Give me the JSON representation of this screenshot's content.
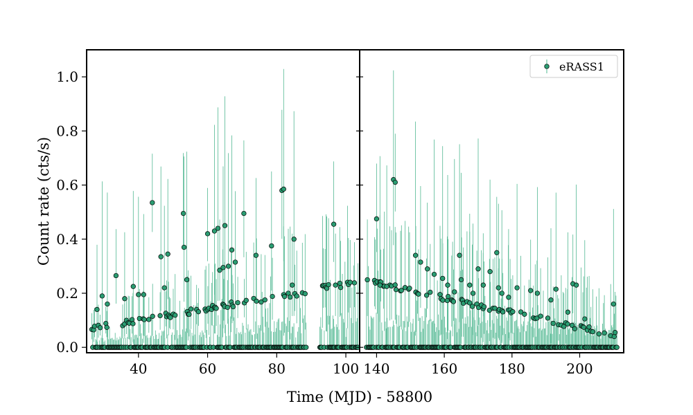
{
  "chart_data": {
    "type": "scatter",
    "title": "",
    "xlabel": "Time (MJD) - 58800",
    "ylabel": "Count rate (cts/s)",
    "ylim": [
      -0.02,
      1.1
    ],
    "yticks": [
      0.0,
      0.2,
      0.4,
      0.6,
      0.8,
      1.0
    ],
    "yticklabels": [
      "0.0",
      "0.2",
      "0.4",
      "0.6",
      "0.8",
      "1.0"
    ],
    "marker_color": "#2a9d72",
    "errorbar_color": "#52b892",
    "legend": {
      "label": "eRASS1",
      "location": "upper right"
    },
    "panels": [
      {
        "name": "left",
        "xlim": [
          25,
          104
        ],
        "xticks": [
          40,
          60,
          80,
          100
        ],
        "xticklabels": [
          "40",
          "60",
          "80",
          "100"
        ],
        "segments": [
          {
            "x0": 26.5,
            "x1": 88.5,
            "n": 230,
            "trend_a": 0.07,
            "trend_b": 0.205,
            "err_a": 0.03,
            "err_b": 0.11
          },
          {
            "x0": 92.5,
            "x1": 103.5,
            "n": 45,
            "trend_a": 0.22,
            "trend_b": 0.24,
            "err_a": 0.11,
            "err_b": 0.12
          }
        ],
        "outliers": [
          {
            "x": 28.0,
            "y": 0.14
          },
          {
            "x": 29.5,
            "y": 0.19
          },
          {
            "x": 31.0,
            "y": 0.16
          },
          {
            "x": 33.5,
            "y": 0.265
          },
          {
            "x": 36.0,
            "y": 0.18
          },
          {
            "x": 38.5,
            "y": 0.225
          },
          {
            "x": 40.0,
            "y": 0.195
          },
          {
            "x": 41.5,
            "y": 0.195
          },
          {
            "x": 44.0,
            "y": 0.535
          },
          {
            "x": 46.5,
            "y": 0.335
          },
          {
            "x": 47.5,
            "y": 0.22
          },
          {
            "x": 48.5,
            "y": 0.345
          },
          {
            "x": 53.0,
            "y": 0.495
          },
          {
            "x": 53.2,
            "y": 0.37
          },
          {
            "x": 54.0,
            "y": 0.25
          },
          {
            "x": 60.0,
            "y": 0.42
          },
          {
            "x": 62.0,
            "y": 0.43
          },
          {
            "x": 63.0,
            "y": 0.44
          },
          {
            "x": 63.5,
            "y": 0.285
          },
          {
            "x": 64.5,
            "y": 0.295
          },
          {
            "x": 65.0,
            "y": 0.45
          },
          {
            "x": 66.0,
            "y": 0.3
          },
          {
            "x": 67.0,
            "y": 0.36
          },
          {
            "x": 68.0,
            "y": 0.315
          },
          {
            "x": 70.5,
            "y": 0.495
          },
          {
            "x": 74.0,
            "y": 0.34
          },
          {
            "x": 78.5,
            "y": 0.375
          },
          {
            "x": 81.5,
            "y": 0.58
          },
          {
            "x": 82.0,
            "y": 0.585
          },
          {
            "x": 84.5,
            "y": 0.23
          },
          {
            "x": 85.0,
            "y": 0.4
          },
          {
            "x": 96.5,
            "y": 0.455
          }
        ]
      },
      {
        "name": "right",
        "xlim": [
          135,
          213
        ],
        "xticks": [
          140,
          160,
          180,
          200
        ],
        "xticklabels": [
          "140",
          "160",
          "180",
          "200"
        ],
        "segments": [
          {
            "x0": 137.0,
            "x1": 211.0,
            "n": 280,
            "trend_a": 0.245,
            "trend_b": 0.045,
            "err_a": 0.12,
            "err_b": 0.08
          }
        ],
        "outliers": [
          {
            "x": 140.0,
            "y": 0.475
          },
          {
            "x": 141.0,
            "y": 0.23
          },
          {
            "x": 143.0,
            "y": 0.225
          },
          {
            "x": 145.0,
            "y": 0.62
          },
          {
            "x": 145.5,
            "y": 0.61
          },
          {
            "x": 151.5,
            "y": 0.34
          },
          {
            "x": 153.0,
            "y": 0.315
          },
          {
            "x": 155.0,
            "y": 0.29
          },
          {
            "x": 157.0,
            "y": 0.27
          },
          {
            "x": 159.5,
            "y": 0.255
          },
          {
            "x": 161.0,
            "y": 0.23
          },
          {
            "x": 163.0,
            "y": 0.205
          },
          {
            "x": 164.5,
            "y": 0.34
          },
          {
            "x": 165.0,
            "y": 0.25
          },
          {
            "x": 167.5,
            "y": 0.23
          },
          {
            "x": 168.5,
            "y": 0.2
          },
          {
            "x": 170.0,
            "y": 0.29
          },
          {
            "x": 171.5,
            "y": 0.23
          },
          {
            "x": 173.5,
            "y": 0.28
          },
          {
            "x": 175.5,
            "y": 0.35
          },
          {
            "x": 176.0,
            "y": 0.22
          },
          {
            "x": 177.0,
            "y": 0.2
          },
          {
            "x": 179.0,
            "y": 0.185
          },
          {
            "x": 181.5,
            "y": 0.22
          },
          {
            "x": 185.5,
            "y": 0.21
          },
          {
            "x": 187.5,
            "y": 0.2
          },
          {
            "x": 191.5,
            "y": 0.175
          },
          {
            "x": 193.0,
            "y": 0.215
          },
          {
            "x": 196.5,
            "y": 0.13
          },
          {
            "x": 198.0,
            "y": 0.235
          },
          {
            "x": 199.0,
            "y": 0.23
          },
          {
            "x": 201.5,
            "y": 0.105
          },
          {
            "x": 210.0,
            "y": 0.16
          }
        ]
      }
    ]
  }
}
